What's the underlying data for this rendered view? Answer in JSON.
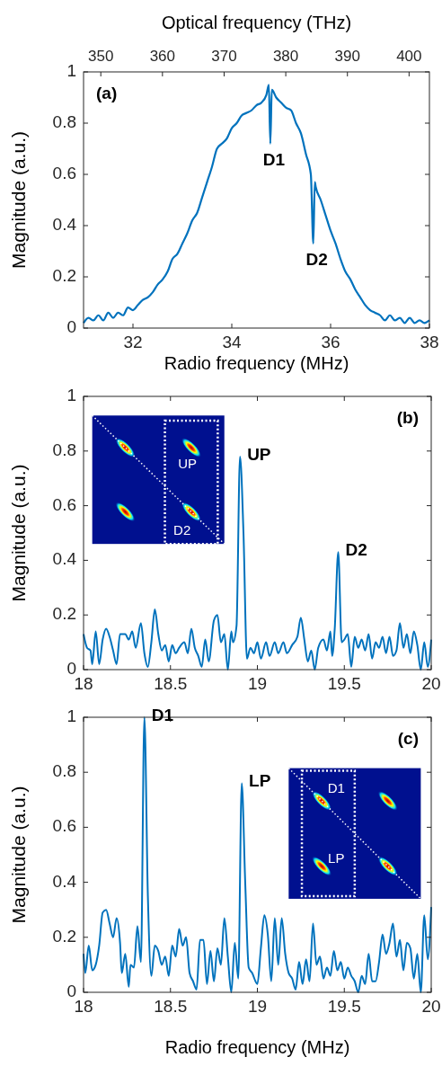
{
  "chart_data": [
    {
      "type": "line",
      "xlabel": "Radio frequency (MHz)",
      "ylabel": "Magnitude (a.u.)",
      "x2label": "Optical frequency (THz)",
      "xlim": [
        31,
        38
      ],
      "xticks": [
        32,
        34,
        36,
        38
      ],
      "x2lim": [
        347.2,
        403.3
      ],
      "x2ticks": [
        350,
        360,
        370,
        380,
        390,
        400
      ],
      "ylim": [
        0,
        1
      ],
      "yticks": [
        0,
        0.2,
        0.4,
        0.6,
        0.8,
        1
      ],
      "annotations": [
        "(a)",
        {
          "text": "D1",
          "x": 34.78,
          "y": 0.72
        },
        {
          "text": "D2",
          "x": 35.65,
          "y": 0.33
        }
      ],
      "series": [
        {
          "color": "#0072bd",
          "x": [
            31.0,
            31.1,
            31.2,
            31.3,
            31.4,
            31.5,
            31.6,
            31.7,
            31.8,
            31.9,
            32.0,
            32.1,
            32.2,
            32.3,
            32.4,
            32.5,
            32.6,
            32.7,
            32.8,
            32.9,
            33.0,
            33.1,
            33.2,
            33.3,
            33.4,
            33.5,
            33.6,
            33.7,
            33.8,
            33.9,
            34.0,
            34.1,
            34.2,
            34.3,
            34.4,
            34.5,
            34.6,
            34.7,
            34.75,
            34.78,
            34.81,
            34.9,
            35.0,
            35.1,
            35.2,
            35.3,
            35.4,
            35.5,
            35.6,
            35.65,
            35.68,
            35.7,
            35.8,
            35.9,
            36.0,
            36.1,
            36.2,
            36.3,
            36.4,
            36.5,
            36.6,
            36.7,
            36.8,
            36.9,
            37.0,
            37.1,
            37.2,
            37.3,
            37.4,
            37.5,
            37.6,
            37.7,
            37.8,
            37.9,
            38.0
          ],
          "values": [
            0.02,
            0.04,
            0.03,
            0.05,
            0.03,
            0.06,
            0.04,
            0.06,
            0.05,
            0.08,
            0.07,
            0.09,
            0.11,
            0.12,
            0.14,
            0.17,
            0.19,
            0.22,
            0.27,
            0.29,
            0.33,
            0.37,
            0.42,
            0.45,
            0.51,
            0.57,
            0.63,
            0.7,
            0.72,
            0.74,
            0.78,
            0.8,
            0.83,
            0.84,
            0.85,
            0.87,
            0.88,
            0.91,
            0.95,
            0.72,
            0.93,
            0.9,
            0.88,
            0.86,
            0.85,
            0.8,
            0.76,
            0.68,
            0.6,
            0.33,
            0.57,
            0.55,
            0.5,
            0.44,
            0.38,
            0.33,
            0.27,
            0.22,
            0.19,
            0.15,
            0.12,
            0.09,
            0.07,
            0.06,
            0.05,
            0.03,
            0.05,
            0.03,
            0.04,
            0.02,
            0.04,
            0.02,
            0.03,
            0.02,
            0.03
          ]
        }
      ]
    },
    {
      "type": "line",
      "ylabel": "Magnitude (a.u.)",
      "xlim": [
        18,
        20
      ],
      "xticks": [
        18,
        18.5,
        19,
        19.5,
        20
      ],
      "ylim": [
        0,
        1
      ],
      "yticks": [
        0,
        0.2,
        0.4,
        0.6,
        0.8,
        1
      ],
      "annotations": [
        "(b)",
        "UP",
        "D2",
        {
          "text": "UP",
          "x": 18.9,
          "y": 0.78
        },
        {
          "text": "D2",
          "x": 19.465,
          "y": 0.43
        }
      ],
      "series": [
        {
          "color": "#0072bd",
          "x": [
            18.0,
            18.02,
            18.04,
            18.05,
            18.07,
            18.09,
            18.11,
            18.13,
            18.15,
            18.17,
            18.19,
            18.21,
            18.24,
            18.26,
            18.28,
            18.3,
            18.33,
            18.35,
            18.37,
            18.39,
            18.41,
            18.43,
            18.45,
            18.47,
            18.49,
            18.51,
            18.53,
            18.55,
            18.58,
            18.6,
            18.62,
            18.64,
            18.66,
            18.68,
            18.7,
            18.72,
            18.75,
            18.77,
            18.79,
            18.81,
            18.83,
            18.85,
            18.86,
            18.88,
            18.9,
            18.92,
            18.94,
            18.96,
            18.98,
            19.0,
            19.02,
            19.05,
            19.07,
            19.1,
            19.12,
            19.15,
            19.17,
            19.2,
            19.23,
            19.25,
            19.27,
            19.29,
            19.31,
            19.33,
            19.35,
            19.38,
            19.4,
            19.42,
            19.43,
            19.445,
            19.465,
            19.485,
            19.5,
            19.52,
            19.54,
            19.56,
            19.58,
            19.6,
            19.62,
            19.64,
            19.66,
            19.68,
            19.7,
            19.72,
            19.74,
            19.76,
            19.78,
            19.8,
            19.82,
            19.84,
            19.86,
            19.88,
            19.9,
            19.92,
            19.94,
            19.96,
            19.98,
            20.0
          ],
          "values": [
            0.13,
            0.08,
            0.07,
            0.02,
            0.14,
            0.02,
            0.11,
            0.15,
            0.12,
            0.07,
            0.02,
            0.13,
            0.13,
            0.11,
            0.14,
            0.08,
            0.17,
            0.06,
            0.01,
            0.1,
            0.22,
            0.13,
            0.07,
            0.09,
            0.03,
            0.09,
            0.06,
            0.08,
            0.1,
            0.06,
            0.15,
            0.08,
            0.05,
            0.01,
            0.11,
            0.03,
            0.18,
            0.2,
            0.1,
            0.13,
            0.0,
            0.14,
            0.1,
            0.16,
            0.78,
            0.5,
            0.04,
            0.08,
            0.06,
            0.1,
            0.04,
            0.1,
            0.05,
            0.1,
            0.06,
            0.1,
            0.06,
            0.09,
            0.12,
            0.19,
            0.11,
            0.03,
            0.07,
            0.0,
            0.08,
            0.11,
            0.07,
            0.14,
            0.05,
            0.15,
            0.43,
            0.1,
            0.11,
            0.13,
            0.01,
            0.12,
            0.08,
            0.11,
            0.07,
            0.13,
            0.04,
            0.1,
            0.08,
            0.12,
            0.06,
            0.12,
            0.05,
            0.07,
            0.17,
            0.08,
            0.13,
            0.06,
            0.14,
            0.09,
            0.0,
            0.1,
            0.01,
            0.11
          ]
        }
      ]
    },
    {
      "type": "line",
      "xlabel": "Radio frequency (MHz)",
      "ylabel": "Magnitude (a.u.)",
      "xlim": [
        18,
        20
      ],
      "xticks": [
        18,
        18.5,
        19,
        19.5,
        20
      ],
      "ylim": [
        0,
        1
      ],
      "yticks": [
        0,
        0.2,
        0.4,
        0.6,
        0.8,
        1
      ],
      "annotations": [
        "(c)",
        "D1",
        "LP",
        {
          "text": "D1",
          "x": 18.35,
          "y": 1.0
        },
        {
          "text": "LP",
          "x": 18.91,
          "y": 0.76
        }
      ],
      "series": [
        {
          "color": "#0072bd",
          "x": [
            18.0,
            18.01,
            18.03,
            18.05,
            18.07,
            18.09,
            18.11,
            18.13,
            18.15,
            18.17,
            18.19,
            18.21,
            18.22,
            18.24,
            18.26,
            18.27,
            18.29,
            18.31,
            18.33,
            18.35,
            18.37,
            18.39,
            18.41,
            18.43,
            18.45,
            18.47,
            18.49,
            18.51,
            18.53,
            18.55,
            18.57,
            18.59,
            18.61,
            18.63,
            18.65,
            18.67,
            18.69,
            18.71,
            18.73,
            18.75,
            18.77,
            18.79,
            18.81,
            18.83,
            18.85,
            18.87,
            18.89,
            18.91,
            18.93,
            18.95,
            18.97,
            19.0,
            19.02,
            19.04,
            19.06,
            19.08,
            19.1,
            19.12,
            19.14,
            19.16,
            19.18,
            19.2,
            19.22,
            19.24,
            19.26,
            19.28,
            19.3,
            19.32,
            19.34,
            19.36,
            19.38,
            19.4,
            19.42,
            19.44,
            19.46,
            19.48,
            19.5,
            19.52,
            19.54,
            19.56,
            19.58,
            19.6,
            19.62,
            19.64,
            19.66,
            19.68,
            19.7,
            19.72,
            19.74,
            19.76,
            19.78,
            19.8,
            19.82,
            19.84,
            19.86,
            19.88,
            19.9,
            19.92,
            19.94,
            19.96,
            19.98,
            20.0
          ],
          "values": [
            0.14,
            0.07,
            0.17,
            0.08,
            0.1,
            0.17,
            0.29,
            0.3,
            0.25,
            0.2,
            0.27,
            0.18,
            0.07,
            0.14,
            0.02,
            0.1,
            0.09,
            0.24,
            0.11,
            1.0,
            0.35,
            0.06,
            0.17,
            0.15,
            0.1,
            0.13,
            0.06,
            0.17,
            0.13,
            0.23,
            0.17,
            0.2,
            0.07,
            0.04,
            0.01,
            0.19,
            0.19,
            0.03,
            0.15,
            0.04,
            0.16,
            0.1,
            0.27,
            0.13,
            0.0,
            0.18,
            0.05,
            0.76,
            0.4,
            0.09,
            0.07,
            0.03,
            0.16,
            0.28,
            0.21,
            0.04,
            0.27,
            0.1,
            0.27,
            0.14,
            0.07,
            0.05,
            0.01,
            0.11,
            0.03,
            0.12,
            0.04,
            0.25,
            0.1,
            0.13,
            0.05,
            0.09,
            0.06,
            0.15,
            0.08,
            0.11,
            0.05,
            0.09,
            0.06,
            0.04,
            0.0,
            0.06,
            0.03,
            0.14,
            0.04,
            0.04,
            0.11,
            0.21,
            0.14,
            0.18,
            0.25,
            0.13,
            0.19,
            0.08,
            0.18,
            0.16,
            0.05,
            0.14,
            0.0,
            0.28,
            0.12,
            0.31
          ]
        }
      ]
    }
  ]
}
